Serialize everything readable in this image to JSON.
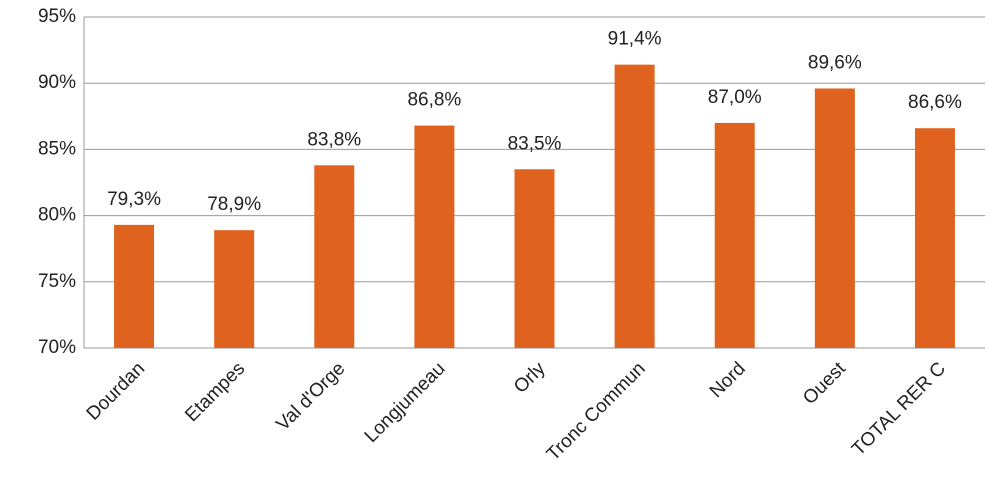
{
  "chart_data": {
    "type": "bar",
    "categories": [
      "Dourdan",
      "Etampes",
      "Val d'Orge",
      "Longjumeau",
      "Orly",
      "Tronc Commun",
      "Nord",
      "Ouest",
      "TOTAL RER C"
    ],
    "values": [
      79.3,
      78.9,
      83.8,
      86.8,
      83.5,
      91.4,
      87.0,
      89.6,
      86.6
    ],
    "value_labels": [
      "79,3%",
      "78,9%",
      "83,8%",
      "86,8%",
      "83,5%",
      "91,4%",
      "87,0%",
      "89,6%",
      "86,6%"
    ],
    "color": "#e0621f",
    "ylim": [
      70,
      95
    ],
    "yticks": [
      {
        "value": 70,
        "label": "70%"
      },
      {
        "value": 75,
        "label": "75%"
      },
      {
        "value": 80,
        "label": "80%"
      },
      {
        "value": 85,
        "label": "85%"
      },
      {
        "value": 90,
        "label": "90%"
      },
      {
        "value": 95,
        "label": "95%"
      }
    ],
    "grid": true
  }
}
